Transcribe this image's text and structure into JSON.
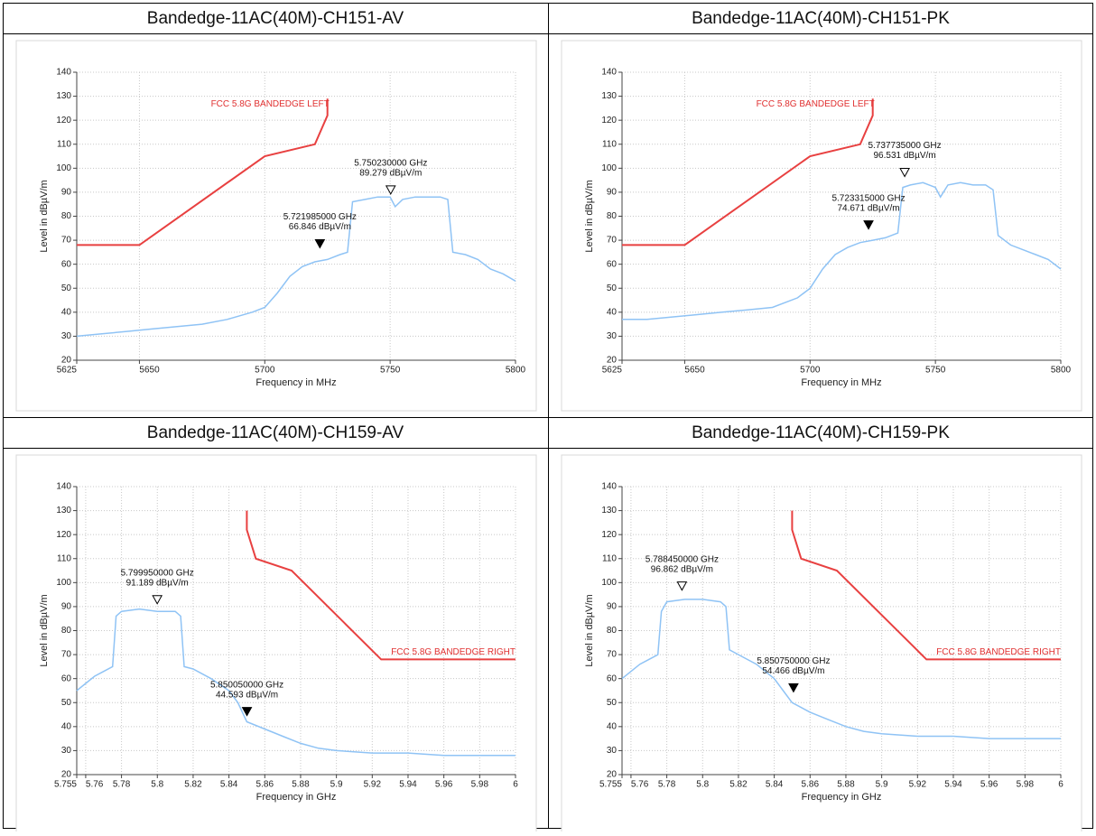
{
  "chart_data": [
    {
      "type": "line",
      "title": "Bandedge-11AC(40M)-CH151-AV",
      "x_label": "Frequency in MHz",
      "y_label": "Level in dBµV/m",
      "xlim": [
        5625,
        5800
      ],
      "xticks": [
        5625,
        5650,
        5700,
        5750,
        5800
      ],
      "ylim": [
        20,
        140
      ],
      "yticks": [
        20,
        30,
        40,
        50,
        60,
        70,
        80,
        90,
        100,
        110,
        120,
        130,
        140
      ],
      "grid": true,
      "series": [
        {
          "name": "FCC 5.8G BANDEDGE LEFT",
          "color": "#e84040",
          "x": [
            5625,
            5650,
            5700,
            5720,
            5725,
            5725
          ],
          "values": [
            68,
            68,
            105,
            110,
            122,
            129
          ]
        },
        {
          "color": "#8fc3f5",
          "x": [
            5625,
            5635,
            5645,
            5655,
            5665,
            5675,
            5685,
            5695,
            5700,
            5705,
            5710,
            5715,
            5720,
            5725,
            5730,
            5733,
            5735,
            5740,
            5745,
            5750,
            5752,
            5755,
            5760,
            5765,
            5770,
            5773,
            5775,
            5780,
            5785,
            5790,
            5795,
            5800
          ],
          "values": [
            30,
            31,
            32,
            33,
            34,
            35,
            37,
            40,
            42,
            48,
            55,
            59,
            61,
            62,
            64,
            65,
            86,
            87,
            88,
            88,
            84,
            87,
            88,
            88,
            88,
            87,
            65,
            64,
            62,
            58,
            56,
            53
          ]
        }
      ],
      "annotations": [
        {
          "x": 5750.23,
          "y": 89.279,
          "marker": "open",
          "label": [
            "5.750230000 GHz",
            "89.279 dBµV/m"
          ]
        },
        {
          "x": 5721.985,
          "y": 66.846,
          "marker": "filled",
          "label": [
            "5.721985000 GHz",
            "66.846 dBµV/m"
          ]
        }
      ]
    },
    {
      "type": "line",
      "title": "Bandedge-11AC(40M)-CH151-PK",
      "x_label": "Frequency in MHz",
      "y_label": "Level in dBµV/m",
      "xlim": [
        5625,
        5800
      ],
      "xticks": [
        5625,
        5650,
        5700,
        5750,
        5800
      ],
      "ylim": [
        20,
        140
      ],
      "yticks": [
        20,
        30,
        40,
        50,
        60,
        70,
        80,
        90,
        100,
        110,
        120,
        130,
        140
      ],
      "grid": true,
      "series": [
        {
          "name": "FCC 5.8G BANDEDGE LEFT",
          "color": "#e84040",
          "x": [
            5625,
            5650,
            5700,
            5720,
            5725,
            5725
          ],
          "values": [
            68,
            68,
            105,
            110,
            122,
            129
          ]
        },
        {
          "color": "#8fc3f5",
          "x": [
            5625,
            5635,
            5645,
            5655,
            5665,
            5675,
            5685,
            5695,
            5700,
            5705,
            5710,
            5715,
            5720,
            5725,
            5730,
            5735,
            5737,
            5740,
            5745,
            5750,
            5752,
            5755,
            5760,
            5765,
            5770,
            5773,
            5775,
            5780,
            5785,
            5790,
            5795,
            5800
          ],
          "values": [
            37,
            37,
            38,
            39,
            40,
            41,
            42,
            46,
            50,
            58,
            64,
            67,
            69,
            70,
            71,
            73,
            92,
            93,
            94,
            92,
            88,
            93,
            94,
            93,
            93,
            91,
            72,
            68,
            66,
            64,
            62,
            58
          ]
        }
      ],
      "annotations": [
        {
          "x": 5737.735,
          "y": 96.531,
          "marker": "open",
          "label": [
            "5.737735000 GHz",
            "96.531 dBµV/m"
          ]
        },
        {
          "x": 5723.315,
          "y": 74.671,
          "marker": "filled",
          "label": [
            "5.723315000 GHz",
            "74.671 dBµV/m"
          ]
        }
      ]
    },
    {
      "type": "line",
      "title": "Bandedge-11AC(40M)-CH159-AV",
      "x_label": "Frequency in GHz",
      "y_label": "Level in dBµV/m",
      "xlim": [
        5.755,
        6
      ],
      "xticks": [
        5.755,
        5.76,
        5.78,
        5.8,
        5.82,
        5.84,
        5.86,
        5.88,
        5.9,
        5.92,
        5.94,
        5.96,
        5.98,
        6
      ],
      "ylim": [
        20,
        140
      ],
      "yticks": [
        20,
        30,
        40,
        50,
        60,
        70,
        80,
        90,
        100,
        110,
        120,
        130,
        140
      ],
      "grid": true,
      "series": [
        {
          "name": "FCC 5.8G BANDEDGE RIGHT",
          "color": "#e84040",
          "x": [
            5.85,
            5.85,
            5.855,
            5.875,
            5.925,
            6
          ],
          "values": [
            130,
            122,
            110,
            105,
            68,
            68
          ]
        },
        {
          "color": "#8fc3f5",
          "x": [
            5.755,
            5.76,
            5.765,
            5.77,
            5.775,
            5.777,
            5.78,
            5.79,
            5.8,
            5.81,
            5.813,
            5.815,
            5.82,
            5.83,
            5.84,
            5.845,
            5.85,
            5.86,
            5.87,
            5.88,
            5.89,
            5.9,
            5.92,
            5.94,
            5.96,
            5.98,
            6
          ],
          "values": [
            55,
            58,
            61,
            63,
            65,
            86,
            88,
            89,
            88,
            88,
            86,
            65,
            64,
            60,
            55,
            50,
            42,
            39,
            36,
            33,
            31,
            30,
            29,
            29,
            28,
            28,
            28
          ]
        }
      ],
      "annotations": [
        {
          "x": 5.79995,
          "y": 91.189,
          "marker": "open",
          "label": [
            "5.799950000 GHz",
            "91.189 dBµV/m"
          ]
        },
        {
          "x": 5.85005,
          "y": 44.593,
          "marker": "filled",
          "label": [
            "5.850050000 GHz",
            "44.593 dBµV/m"
          ]
        }
      ]
    },
    {
      "type": "line",
      "title": "Bandedge-11AC(40M)-CH159-PK",
      "x_label": "Frequency in GHz",
      "y_label": "Level in dBµV/m",
      "xlim": [
        5.755,
        6
      ],
      "xticks": [
        5.755,
        5.76,
        5.78,
        5.8,
        5.82,
        5.84,
        5.86,
        5.88,
        5.9,
        5.92,
        5.94,
        5.96,
        5.98,
        6
      ],
      "ylim": [
        20,
        140
      ],
      "yticks": [
        20,
        30,
        40,
        50,
        60,
        70,
        80,
        90,
        100,
        110,
        120,
        130,
        140
      ],
      "grid": true,
      "series": [
        {
          "name": "FCC 5.8G BANDEDGE RIGHT",
          "color": "#e84040",
          "x": [
            5.85,
            5.85,
            5.855,
            5.875,
            5.925,
            6
          ],
          "values": [
            130,
            122,
            110,
            105,
            68,
            68
          ]
        },
        {
          "color": "#8fc3f5",
          "x": [
            5.755,
            5.76,
            5.765,
            5.77,
            5.775,
            5.777,
            5.78,
            5.79,
            5.8,
            5.81,
            5.813,
            5.815,
            5.82,
            5.83,
            5.84,
            5.845,
            5.85,
            5.86,
            5.87,
            5.88,
            5.89,
            5.9,
            5.92,
            5.94,
            5.96,
            5.98,
            6
          ],
          "values": [
            60,
            63,
            66,
            68,
            70,
            88,
            92,
            93,
            93,
            92,
            90,
            72,
            70,
            66,
            60,
            55,
            50,
            46,
            43,
            40,
            38,
            37,
            36,
            36,
            35,
            35,
            35
          ]
        }
      ],
      "annotations": [
        {
          "x": 5.78845,
          "y": 96.862,
          "marker": "open",
          "label": [
            "5.788450000 GHz",
            "96.862 dBµV/m"
          ]
        },
        {
          "x": 5.85075,
          "y": 54.466,
          "marker": "filled",
          "label": [
            "5.850750000 GHz",
            "54.466 dBµV/m"
          ]
        }
      ]
    }
  ]
}
